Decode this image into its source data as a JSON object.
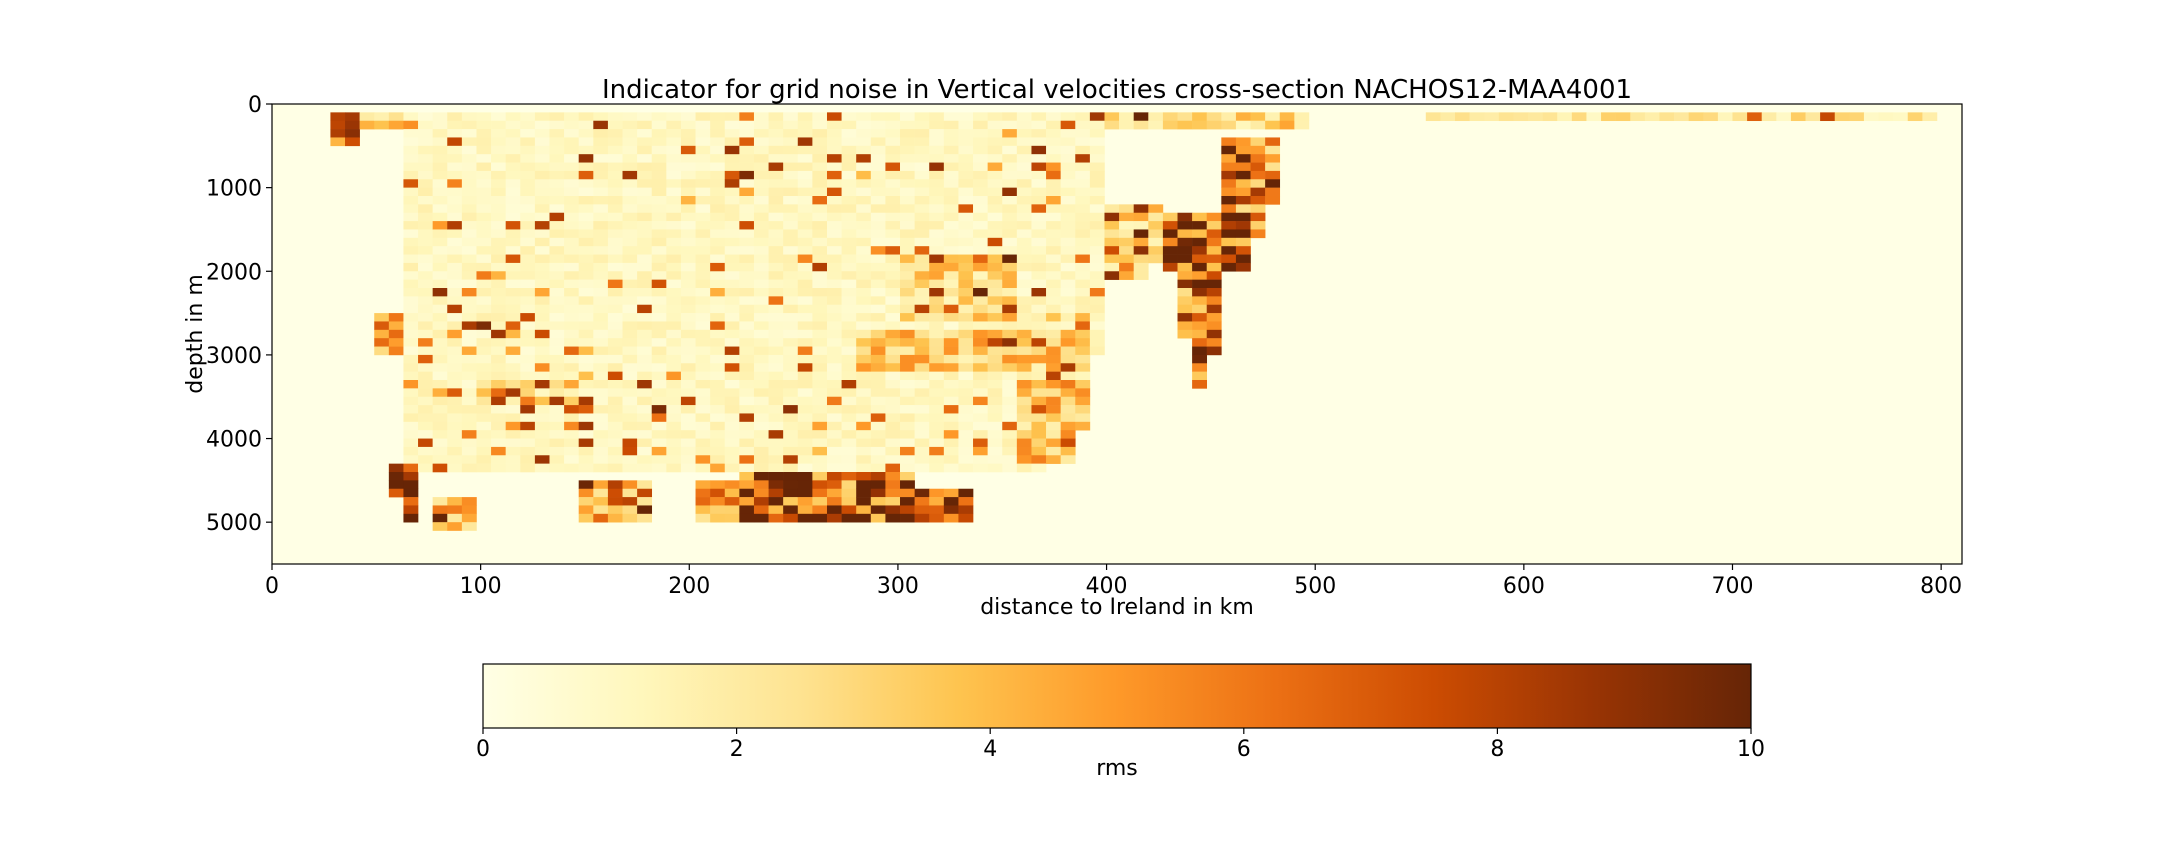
{
  "chart_data": {
    "type": "heatmap",
    "title": "Indicator for grid noise in Vertical velocities cross-section NACHOS12-MAA4001",
    "xlabel": "distance to Ireland in km",
    "ylabel": "depth in m",
    "xlim": [
      0,
      810
    ],
    "ylim": [
      5500,
      0
    ],
    "y_inverted": true,
    "xticks": [
      0,
      100,
      200,
      300,
      400,
      500,
      600,
      700,
      800
    ],
    "yticks": [
      0,
      1000,
      2000,
      3000,
      4000,
      5000
    ],
    "colorbar": {
      "label": "rms",
      "range": [
        0,
        10
      ],
      "ticks": [
        0,
        2,
        4,
        6,
        8,
        10
      ],
      "orientation": "horizontal",
      "colormap": "YlOrBr",
      "colors": [
        "#ffffe5",
        "#fff7bc",
        "#fee391",
        "#fec44f",
        "#fe9929",
        "#ec7014",
        "#cc4c02",
        "#993404",
        "#662506"
      ]
    },
    "grid": false,
    "cell_size": {
      "dx_km": 7,
      "dz_m": 100
    },
    "background_value": 0,
    "bottom_profile": [
      [
        28,
        400
      ],
      [
        33,
        700
      ],
      [
        40,
        1000
      ],
      [
        45,
        1900
      ],
      [
        48,
        2700
      ],
      [
        52,
        3300
      ],
      [
        56,
        4100
      ],
      [
        62,
        5000
      ],
      [
        70,
        5100
      ],
      [
        150,
        5150
      ],
      [
        240,
        5150
      ],
      [
        260,
        5000
      ],
      [
        300,
        5000
      ],
      [
        335,
        4900
      ],
      [
        345,
        4400
      ],
      [
        370,
        4300
      ],
      [
        385,
        4200
      ],
      [
        390,
        3700
      ],
      [
        395,
        3000
      ],
      [
        405,
        2300
      ],
      [
        418,
        2000
      ],
      [
        428,
        1700
      ],
      [
        435,
        2300
      ],
      [
        438,
        2800
      ],
      [
        442,
        3100
      ],
      [
        445,
        3400
      ],
      [
        450,
        3000
      ],
      [
        455,
        2800
      ],
      [
        462,
        2600
      ],
      [
        468,
        2000
      ],
      [
        472,
        1600
      ],
      [
        478,
        1200
      ],
      [
        485,
        900
      ],
      [
        492,
        600
      ],
      [
        497,
        400
      ],
      [
        503,
        250
      ],
      [
        530,
        170
      ],
      [
        800,
        120
      ]
    ],
    "regions": [
      {
        "x": [
          30,
          45
        ],
        "z": [
          100,
          500
        ],
        "value": 8
      },
      {
        "x": [
          50,
          70
        ],
        "z": [
          4300,
          4950
        ],
        "value": 9.5
      },
      {
        "x": [
          75,
          100
        ],
        "z": [
          4700,
          5100
        ],
        "value": 4.5
      },
      {
        "x": [
          150,
          180
        ],
        "z": [
          4500,
          5000
        ],
        "value": 6.5
      },
      {
        "x": [
          200,
          225
        ],
        "z": [
          4500,
          5000
        ],
        "value": 5.5
      },
      {
        "x": [
          225,
          275
        ],
        "z": [
          4400,
          4950
        ],
        "value": 9.5
      },
      {
        "x": [
          265,
          305
        ],
        "z": [
          4400,
          4950
        ],
        "value": 8.5
      },
      {
        "x": [
          305,
          335
        ],
        "z": [
          4600,
          4950
        ],
        "value": 9
      },
      {
        "x": [
          280,
          395
        ],
        "z": [
          2700,
          3200
        ],
        "value": 4
      },
      {
        "x": [
          300,
          360
        ],
        "z": [
          1800,
          2600
        ],
        "value": 3.5
      },
      {
        "x": [
          360,
          395
        ],
        "z": [
          3300,
          4300
        ],
        "value": 4.5
      },
      {
        "x": [
          428,
          478
        ],
        "z": [
          1300,
          1950
        ],
        "value": 8.5
      },
      {
        "x": [
          435,
          455
        ],
        "z": [
          2000,
          3400
        ],
        "value": 7.5
      },
      {
        "x": [
          455,
          480
        ],
        "z": [
          400,
          1300
        ],
        "value": 6.5
      },
      {
        "x": [
          400,
          430
        ],
        "z": [
          1200,
          2100
        ],
        "value": 3.5
      },
      {
        "x": [
          45,
          62
        ],
        "z": [
          2500,
          3000
        ],
        "value": 5.5
      },
      {
        "x": [
          100,
          150
        ],
        "z": [
          3300,
          3600
        ],
        "value": 3
      },
      {
        "x": [
          60,
          400
        ],
        "z": [
          150,
          4400
        ],
        "value": 1.3
      },
      {
        "x": [
          30,
          500
        ],
        "z": [
          100,
          300
        ],
        "value": 3.5
      },
      {
        "x": [
          550,
          800
        ],
        "z": [
          80,
          150
        ],
        "value": 2.5
      }
    ]
  }
}
